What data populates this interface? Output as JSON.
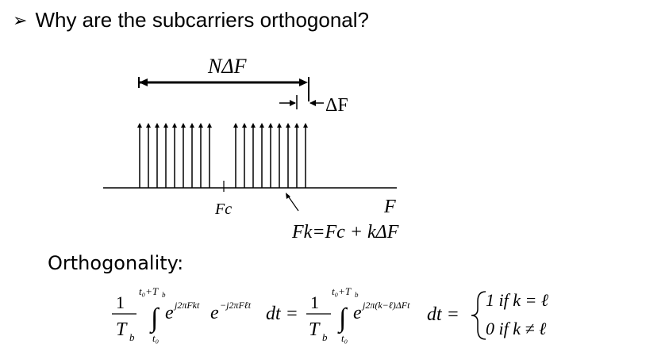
{
  "slide": {
    "bullet": "➢",
    "title": "Why are the subcarriers orthogonal?"
  },
  "diagram": {
    "span_label": "NΔF",
    "spacing_label": "ΔF",
    "center_label": "Fc",
    "axis_label": "F",
    "fk_label": "Fk=Fc + kΔF"
  },
  "orthogonality": {
    "label": "Orthogonality:",
    "one": "1",
    "Tb": "T",
    "b": "b",
    "upper_limit": "t₀+T",
    "lower_limit": "t₀",
    "integral": "∫",
    "e": "e",
    "exp1": "j2πFkt",
    "exp2": "−j2πFℓt",
    "dt_eq": "dt =",
    "exp3": "j2π(k−ℓ)ΔFt",
    "dt_eq2": "dt =",
    "case1": "1  if k = ℓ",
    "case2": "0  if k ≠ ℓ"
  }
}
